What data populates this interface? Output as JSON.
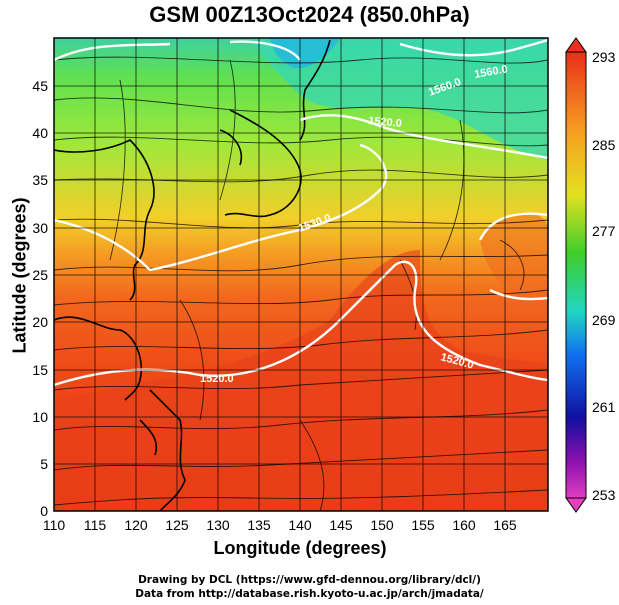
{
  "title": "GSM 00Z13Oct2024 (850.0hPa)",
  "axes": {
    "xlabel": "Longitude (degrees)",
    "ylabel": "Latitude  (degrees)",
    "x_ticks": [
      "110",
      "115",
      "120",
      "125",
      "130",
      "135",
      "140",
      "145",
      "150",
      "155",
      "160",
      "165"
    ],
    "y_ticks": [
      "0",
      "5",
      "10",
      "15",
      "20",
      "25",
      "30",
      "35",
      "40",
      "45"
    ]
  },
  "colorbar": {
    "labels": [
      "293",
      "285",
      "277",
      "269",
      "261",
      "253"
    ]
  },
  "contour_labels": [
    "1560.0",
    "1560.0",
    "1520.0",
    "1530.0",
    "1520.0",
    "1520.0"
  ],
  "credits": {
    "line1": "Drawing by DCL (https://www.gfd-dennou.org/library/dcl/)",
    "line2": "Data from http://database.rish.kyoto-u.ac.jp/arch/jmadata/"
  },
  "chart_data": {
    "type": "heatmap",
    "title": "GSM 00Z13Oct2024 (850.0hPa)",
    "xlabel": "Longitude (degrees)",
    "ylabel": "Latitude  (degrees)",
    "xlim": [
      110,
      170
    ],
    "ylim": [
      0,
      50
    ],
    "color_scale": {
      "min": 253,
      "max": 293,
      "ticks": [
        293,
        285,
        277,
        269,
        261,
        253
      ]
    },
    "contour_levels": [
      1520,
      1530,
      1560
    ]
  }
}
